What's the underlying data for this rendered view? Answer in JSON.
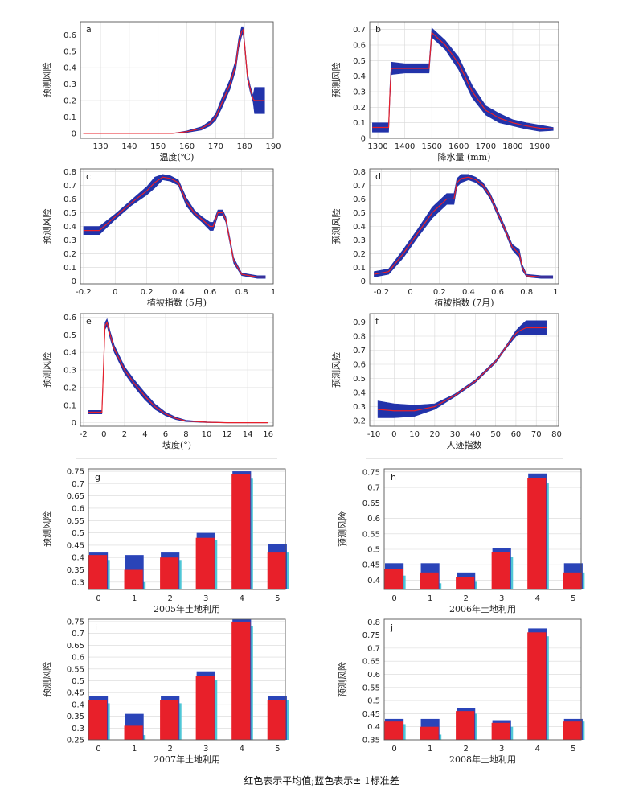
{
  "caption": "红色表示平均值;蓝色表示± 1标准差",
  "colors": {
    "mean": "#e8202a",
    "band": "#2233aa",
    "bar_mean": "#e8202a",
    "bar_sd": "#2a44b8",
    "bar_extra": "#4fc7d6"
  },
  "chart_data": [
    {
      "type": "line",
      "panel": "a",
      "xlabel": "温度(℃)",
      "ylabel": "预测风险",
      "xlim": [
        123,
        190
      ],
      "ylim": [
        -0.03,
        0.68
      ],
      "xticks": [
        130,
        140,
        150,
        160,
        170,
        180,
        190
      ],
      "yticks": [
        0.0,
        0.1,
        0.2,
        0.3,
        0.4,
        0.5,
        0.6
      ],
      "x": [
        124,
        140,
        155,
        160,
        165,
        168,
        170,
        172,
        175,
        177,
        178,
        179,
        179.5,
        180,
        181,
        182,
        183,
        183.5,
        185,
        187
      ],
      "mean": [
        0,
        0,
        0,
        0.01,
        0.03,
        0.06,
        0.1,
        0.18,
        0.3,
        0.42,
        0.55,
        0.62,
        0.63,
        0.55,
        0.35,
        0.27,
        0.21,
        0.2,
        0.2,
        0.2
      ],
      "sd": [
        0,
        0,
        0,
        0.005,
        0.01,
        0.015,
        0.02,
        0.03,
        0.03,
        0.03,
        0.03,
        0.03,
        0.02,
        0.02,
        0.02,
        0.02,
        0.02,
        0.08,
        0.08,
        0.08
      ]
    },
    {
      "type": "line",
      "panel": "b",
      "xlabel": "降水量 (mm)",
      "ylabel": "预测风险",
      "xlim": [
        1270,
        1970
      ],
      "ylim": [
        0,
        0.75
      ],
      "xticks": [
        1300,
        1400,
        1500,
        1600,
        1700,
        1800,
        1900
      ],
      "yticks": [
        0.0,
        0.1,
        0.2,
        0.3,
        0.4,
        0.5,
        0.6,
        0.7
      ],
      "x": [
        1280,
        1340,
        1345,
        1350,
        1400,
        1480,
        1490,
        1500,
        1550,
        1600,
        1650,
        1700,
        1750,
        1800,
        1850,
        1900,
        1950
      ],
      "mean": [
        0.07,
        0.07,
        0.3,
        0.45,
        0.45,
        0.45,
        0.45,
        0.68,
        0.6,
        0.48,
        0.3,
        0.18,
        0.13,
        0.1,
        0.08,
        0.065,
        0.06
      ],
      "sd": [
        0.03,
        0.03,
        0.04,
        0.04,
        0.03,
        0.03,
        0.03,
        0.03,
        0.03,
        0.04,
        0.04,
        0.03,
        0.03,
        0.02,
        0.02,
        0.02,
        0.01
      ]
    },
    {
      "type": "line",
      "panel": "c",
      "xlabel": "植被指数 (5月)",
      "ylabel": "预测风险",
      "xlim": [
        -0.22,
        1.0
      ],
      "ylim": [
        -0.02,
        0.82
      ],
      "xticks": [
        -0.2,
        0.0,
        0.2,
        0.4,
        0.6,
        0.8,
        1.0
      ],
      "yticks": [
        0.0,
        0.1,
        0.2,
        0.3,
        0.4,
        0.5,
        0.6,
        0.7,
        0.8
      ],
      "x": [
        -0.2,
        -0.1,
        0.0,
        0.1,
        0.2,
        0.25,
        0.3,
        0.35,
        0.4,
        0.45,
        0.5,
        0.55,
        0.6,
        0.62,
        0.65,
        0.68,
        0.7,
        0.75,
        0.8,
        0.9,
        0.95
      ],
      "mean": [
        0.37,
        0.37,
        0.47,
        0.57,
        0.66,
        0.72,
        0.76,
        0.75,
        0.72,
        0.58,
        0.5,
        0.45,
        0.4,
        0.4,
        0.5,
        0.5,
        0.45,
        0.15,
        0.05,
        0.03,
        0.03
      ],
      "sd": [
        0.03,
        0.03,
        0.02,
        0.02,
        0.03,
        0.04,
        0.02,
        0.02,
        0.02,
        0.03,
        0.02,
        0.02,
        0.03,
        0.03,
        0.02,
        0.02,
        0.02,
        0.02,
        0.01,
        0.01,
        0.01
      ]
    },
    {
      "type": "line",
      "panel": "d",
      "xlabel": "植被指数 (7月)",
      "ylabel": "预测风险",
      "xlim": [
        -0.28,
        1.02
      ],
      "ylim": [
        -0.02,
        0.82
      ],
      "xticks": [
        -0.2,
        0.0,
        0.2,
        0.4,
        0.6,
        0.8,
        1.0
      ],
      "yticks": [
        0.0,
        0.1,
        0.2,
        0.3,
        0.4,
        0.5,
        0.6,
        0.7,
        0.8
      ],
      "x": [
        -0.25,
        -0.15,
        -0.05,
        0.05,
        0.15,
        0.25,
        0.3,
        0.32,
        0.35,
        0.4,
        0.45,
        0.5,
        0.55,
        0.6,
        0.65,
        0.7,
        0.75,
        0.77,
        0.8,
        0.9,
        0.98
      ],
      "mean": [
        0.05,
        0.07,
        0.2,
        0.35,
        0.5,
        0.6,
        0.6,
        0.72,
        0.75,
        0.76,
        0.74,
        0.7,
        0.62,
        0.5,
        0.38,
        0.25,
        0.2,
        0.1,
        0.04,
        0.03,
        0.03
      ],
      "sd": [
        0.02,
        0.02,
        0.03,
        0.03,
        0.04,
        0.04,
        0.04,
        0.03,
        0.03,
        0.02,
        0.02,
        0.02,
        0.02,
        0.02,
        0.02,
        0.02,
        0.03,
        0.02,
        0.01,
        0.01,
        0.01
      ]
    },
    {
      "type": "line",
      "panel": "e",
      "xlabel": "坡度(°)",
      "ylabel": "预测风险",
      "xlim": [
        -2.3,
        16.5
      ],
      "ylim": [
        -0.02,
        0.62
      ],
      "xticks": [
        -2,
        0,
        2,
        4,
        6,
        8,
        10,
        12,
        14,
        16
      ],
      "yticks": [
        0.0,
        0.1,
        0.2,
        0.3,
        0.4,
        0.5,
        0.6
      ],
      "x": [
        -1.5,
        -0.2,
        0.1,
        0.3,
        0.6,
        1,
        1.5,
        2,
        3,
        4,
        5,
        6,
        7,
        8,
        10,
        12,
        16
      ],
      "mean": [
        0.06,
        0.06,
        0.55,
        0.57,
        0.5,
        0.42,
        0.36,
        0.3,
        0.22,
        0.15,
        0.09,
        0.05,
        0.025,
        0.01,
        0.003,
        0.0,
        0.0
      ],
      "sd": [
        0.01,
        0.01,
        0.02,
        0.02,
        0.02,
        0.02,
        0.02,
        0.02,
        0.02,
        0.02,
        0.015,
        0.01,
        0.007,
        0.004,
        0.002,
        0.001,
        0.001
      ]
    },
    {
      "type": "line",
      "panel": "f",
      "xlabel": "人迹指数",
      "ylabel": "预测风险",
      "xlim": [
        -12,
        81
      ],
      "ylim": [
        0.16,
        0.96
      ],
      "xticks": [
        -10,
        0,
        10,
        20,
        30,
        40,
        50,
        60,
        70,
        80
      ],
      "yticks": [
        0.2,
        0.3,
        0.4,
        0.5,
        0.6,
        0.7,
        0.8,
        0.9
      ],
      "x": [
        -8,
        0,
        10,
        20,
        30,
        40,
        50,
        55,
        60,
        62,
        65,
        70,
        75
      ],
      "mean": [
        0.28,
        0.27,
        0.27,
        0.3,
        0.38,
        0.48,
        0.62,
        0.72,
        0.82,
        0.84,
        0.86,
        0.86,
        0.86
      ],
      "sd": [
        0.06,
        0.05,
        0.04,
        0.02,
        0.01,
        0.01,
        0.01,
        0.01,
        0.02,
        0.03,
        0.05,
        0.05,
        0.05
      ]
    },
    {
      "type": "bar",
      "panel": "g",
      "xlabel": "2005年土地利用",
      "ylabel": "预测风险",
      "categories": [
        "0",
        "1",
        "2",
        "3",
        "4",
        "5"
      ],
      "ylim": [
        0.27,
        0.76
      ],
      "yticks": [
        0.3,
        0.35,
        0.4,
        0.45,
        0.5,
        0.55,
        0.6,
        0.65,
        0.7,
        0.75
      ],
      "mean": [
        0.41,
        0.35,
        0.4,
        0.48,
        0.74,
        0.42
      ],
      "sd_upper": [
        0.42,
        0.41,
        0.42,
        0.5,
        0.75,
        0.455
      ],
      "extra": [
        0.39,
        0.3,
        0.39,
        0.47,
        0.72,
        0.42
      ]
    },
    {
      "type": "bar",
      "panel": "h",
      "xlabel": "2006年土地利用",
      "ylabel": "预测风险",
      "categories": [
        "0",
        "1",
        "2",
        "3",
        "4",
        "5"
      ],
      "ylim": [
        0.37,
        0.76
      ],
      "yticks": [
        0.4,
        0.45,
        0.5,
        0.55,
        0.6,
        0.65,
        0.7,
        0.75
      ],
      "mean": [
        0.435,
        0.425,
        0.41,
        0.49,
        0.73,
        0.425
      ],
      "sd_upper": [
        0.455,
        0.455,
        0.425,
        0.505,
        0.745,
        0.455
      ],
      "extra": [
        0.415,
        0.39,
        0.395,
        0.475,
        0.715,
        0.425
      ]
    },
    {
      "type": "bar",
      "panel": "i",
      "xlabel": "2007年土地利用",
      "ylabel": "预测风险",
      "categories": [
        "0",
        "1",
        "2",
        "3",
        "4",
        "5"
      ],
      "ylim": [
        0.25,
        0.76
      ],
      "yticks": [
        0.25,
        0.3,
        0.35,
        0.4,
        0.45,
        0.5,
        0.55,
        0.6,
        0.65,
        0.7,
        0.75
      ],
      "mean": [
        0.42,
        0.31,
        0.42,
        0.52,
        0.75,
        0.42
      ],
      "sd_upper": [
        0.435,
        0.36,
        0.435,
        0.54,
        0.76,
        0.435
      ],
      "extra": [
        0.405,
        0.27,
        0.405,
        0.505,
        0.73,
        0.42
      ]
    },
    {
      "type": "bar",
      "panel": "j",
      "xlabel": "2008年土地利用",
      "ylabel": "预测风险",
      "categories": [
        "0",
        "1",
        "2",
        "3",
        "4",
        "5"
      ],
      "ylim": [
        0.35,
        0.81
      ],
      "yticks": [
        0.35,
        0.4,
        0.45,
        0.5,
        0.55,
        0.6,
        0.65,
        0.7,
        0.75,
        0.8
      ],
      "mean": [
        0.42,
        0.4,
        0.46,
        0.415,
        0.76,
        0.42
      ],
      "sd_upper": [
        0.43,
        0.43,
        0.47,
        0.425,
        0.775,
        0.43
      ],
      "extra": [
        0.41,
        0.37,
        0.45,
        0.4,
        0.745,
        0.42
      ]
    }
  ]
}
